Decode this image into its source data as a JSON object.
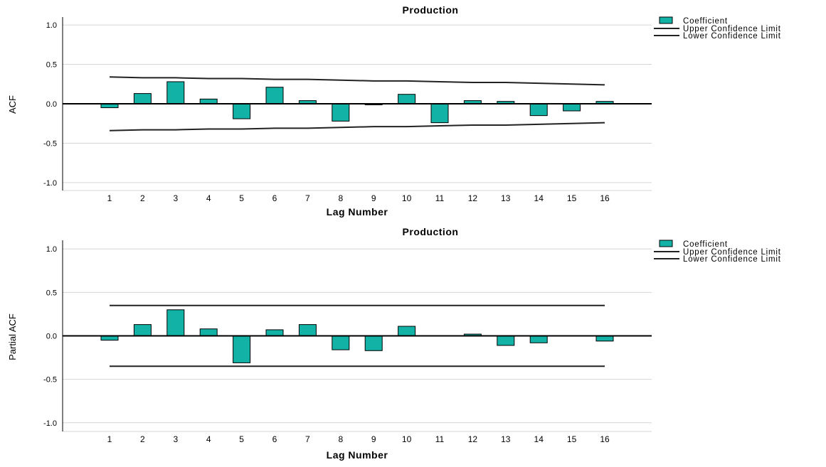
{
  "colors": {
    "bar": "#12b3a6",
    "bar_stroke": "#000000",
    "grid": "#d6d6d6",
    "line": "#222222",
    "axis": "#000000"
  },
  "legend": {
    "coefficient": "Coefficient",
    "upper": "Upper Confidence Limit",
    "lower": "Lower Confidence Limit"
  },
  "chart_data": [
    {
      "type": "bar",
      "title": "Production",
      "xlabel": "Lag Number",
      "ylabel": "ACF",
      "ylim": [
        -1.1,
        1.1
      ],
      "yticks": [
        "1.0",
        "0.5",
        "0.0",
        "-0.5",
        "-1.0"
      ],
      "grid": true,
      "legend_position": "top-right",
      "categories": [
        "1",
        "2",
        "3",
        "4",
        "5",
        "6",
        "7",
        "8",
        "9",
        "10",
        "11",
        "12",
        "13",
        "14",
        "15",
        "16"
      ],
      "series": [
        {
          "name": "Coefficient",
          "values": [
            -0.05,
            0.13,
            0.28,
            0.06,
            -0.19,
            0.21,
            0.04,
            -0.22,
            -0.01,
            0.12,
            -0.24,
            0.04,
            0.03,
            -0.15,
            -0.09,
            0.03
          ]
        },
        {
          "name": "Upper Confidence Limit",
          "values": [
            0.34,
            0.33,
            0.33,
            0.32,
            0.32,
            0.31,
            0.31,
            0.3,
            0.29,
            0.29,
            0.28,
            0.27,
            0.27,
            0.26,
            0.25,
            0.24
          ]
        },
        {
          "name": "Lower Confidence Limit",
          "values": [
            -0.34,
            -0.33,
            -0.33,
            -0.32,
            -0.32,
            -0.31,
            -0.31,
            -0.3,
            -0.29,
            -0.29,
            -0.28,
            -0.27,
            -0.27,
            -0.26,
            -0.25,
            -0.24
          ]
        }
      ]
    },
    {
      "type": "bar",
      "title": "Production",
      "xlabel": "Lag Number",
      "ylabel": "Partial ACF",
      "ylim": [
        -1.1,
        1.1
      ],
      "yticks": [
        "1.0",
        "0.5",
        "0.0",
        "-0.5",
        "-1.0"
      ],
      "grid": true,
      "legend_position": "top-right",
      "categories": [
        "1",
        "2",
        "3",
        "4",
        "5",
        "6",
        "7",
        "8",
        "9",
        "10",
        "11",
        "12",
        "13",
        "14",
        "15",
        "16"
      ],
      "series": [
        {
          "name": "Coefficient",
          "values": [
            -0.05,
            0.13,
            0.3,
            0.08,
            -0.31,
            0.07,
            0.13,
            -0.16,
            -0.17,
            0.11,
            0.0,
            0.02,
            -0.11,
            -0.08,
            0.0,
            -0.06
          ]
        },
        {
          "name": "Upper Confidence Limit",
          "values": [
            0.35,
            0.35,
            0.35,
            0.35,
            0.35,
            0.35,
            0.35,
            0.35,
            0.35,
            0.35,
            0.35,
            0.35,
            0.35,
            0.35,
            0.35,
            0.35
          ]
        },
        {
          "name": "Lower Confidence Limit",
          "values": [
            -0.35,
            -0.35,
            -0.35,
            -0.35,
            -0.35,
            -0.35,
            -0.35,
            -0.35,
            -0.35,
            -0.35,
            -0.35,
            -0.35,
            -0.35,
            -0.35,
            -0.35,
            -0.35
          ]
        }
      ]
    }
  ]
}
